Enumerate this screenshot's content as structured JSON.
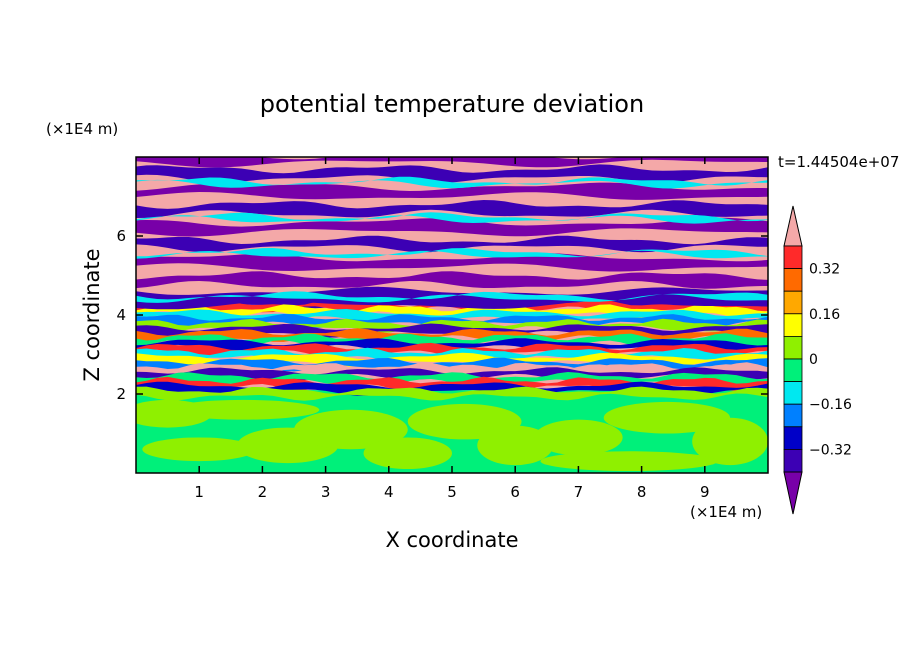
{
  "chart_data": {
    "type": "heatmap",
    "title": "potential temperature deviation",
    "xlabel": "X coordinate",
    "ylabel": "Z coordinate",
    "x_unit": "(×1E4 m)",
    "y_unit": "(×1E4 m)",
    "time_label": "t=1.44504e+07",
    "xlim": [
      0,
      10
    ],
    "ylim": [
      0,
      8
    ],
    "x_ticks": [
      1,
      2,
      3,
      4,
      5,
      6,
      7,
      8,
      9
    ],
    "y_ticks": [
      2,
      4,
      6
    ],
    "grid": false,
    "colorbar": {
      "placement": "right",
      "tick_labels": [
        "0.32",
        "0.16",
        "0",
        "−0.16",
        "−0.32"
      ],
      "tick_values": [
        0.32,
        0.16,
        0,
        -0.16,
        -0.32
      ],
      "levels": [
        {
          "from": 0.4,
          "to": null,
          "color": "#f4a8a8"
        },
        {
          "from": 0.32,
          "to": 0.4,
          "color": "#ff2a2a"
        },
        {
          "from": 0.24,
          "to": 0.32,
          "color": "#ff6a00"
        },
        {
          "from": 0.16,
          "to": 0.24,
          "color": "#ffa800"
        },
        {
          "from": 0.08,
          "to": 0.16,
          "color": "#ffff00"
        },
        {
          "from": 0.0,
          "to": 0.08,
          "color": "#8ff000"
        },
        {
          "from": -0.08,
          "to": 0.0,
          "color": "#00f07a"
        },
        {
          "from": -0.16,
          "to": -0.08,
          "color": "#00e8f0"
        },
        {
          "from": -0.24,
          "to": -0.16,
          "color": "#0080ff"
        },
        {
          "from": -0.32,
          "to": -0.24,
          "color": "#0000c8"
        },
        {
          "from": -0.4,
          "to": -0.32,
          "color": "#3c00b4"
        },
        {
          "from": null,
          "to": -0.4,
          "color": "#7800a8"
        }
      ]
    },
    "field_description_bands_z_1e4m": [
      {
        "z": [
          0.0,
          2.0
        ],
        "value": 0.0
      },
      {
        "z": [
          2.0,
          4.2
        ],
        "value": -0.1
      },
      {
        "z": [
          4.2,
          8.0
        ],
        "value": 0.45
      }
    ]
  }
}
